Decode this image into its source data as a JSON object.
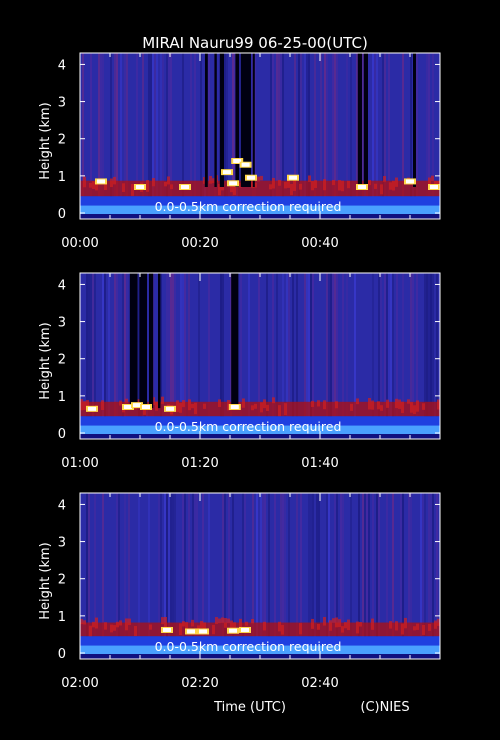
{
  "title": "MIRAI Nauru99 06-25-00(UTC)",
  "x_axis_label": "Time (UTC)",
  "credit": "(C)NIES",
  "note": "0.0-0.5km correction required",
  "y_axis_label": "Height (km)",
  "y_tick_labels": [
    "0",
    "1",
    "2",
    "3",
    "4"
  ],
  "colors": {
    "background": "#000000",
    "clear_air": "#2b2ba6",
    "boundary_layer": "#b01010",
    "cloud": "#ffffff",
    "blocked": "#000010"
  },
  "chart_data": [
    {
      "type": "heatmap",
      "panel": 1,
      "x_tick_labels": [
        "00:00",
        "00:20",
        "00:40"
      ],
      "xlim_minutes": [
        0,
        60
      ],
      "ylim_km": [
        0,
        4.2
      ],
      "y_ticks": [
        0,
        1,
        2,
        3,
        4
      ],
      "ylabel": "Height (km)",
      "annotation": "0.0-0.5km correction required",
      "cloud_base_km": 0.65,
      "dark_columns_minutes": [
        [
          20.8,
          21.3
        ],
        [
          22.4,
          22.8
        ],
        [
          23.3,
          24.0
        ],
        [
          25.9,
          26.5
        ],
        [
          26.8,
          28.5
        ],
        [
          28.8,
          29.1
        ],
        [
          46.3,
          47.0
        ],
        [
          47.3,
          48.0
        ],
        [
          55.5,
          56.0
        ]
      ],
      "cloud_patches": [
        {
          "t": 3.5,
          "h": 0.85
        },
        {
          "t": 10.0,
          "h": 0.7
        },
        {
          "t": 17.5,
          "h": 0.7
        },
        {
          "t": 24.5,
          "h": 1.1
        },
        {
          "t": 25.5,
          "h": 0.8
        },
        {
          "t": 26.2,
          "h": 1.4
        },
        {
          "t": 27.6,
          "h": 1.3
        },
        {
          "t": 28.5,
          "h": 0.95
        },
        {
          "t": 35.5,
          "h": 0.95
        },
        {
          "t": 47.0,
          "h": 0.7
        },
        {
          "t": 55.0,
          "h": 0.85
        },
        {
          "t": 59.0,
          "h": 0.7
        }
      ]
    },
    {
      "type": "heatmap",
      "panel": 2,
      "x_tick_labels": [
        "01:00",
        "01:20",
        "01:40"
      ],
      "xlim_minutes": [
        60,
        120
      ],
      "ylim_km": [
        0,
        4.2
      ],
      "y_ticks": [
        0,
        1,
        2,
        3,
        4
      ],
      "ylabel": "Height (km)",
      "annotation": "0.0-0.5km correction required",
      "cloud_base_km": 0.62,
      "dark_columns_minutes": [
        [
          68.3,
          69.6
        ],
        [
          69.9,
          71.2
        ],
        [
          71.5,
          72.2
        ],
        [
          73.0,
          73.4
        ],
        [
          85.2,
          86.4
        ]
      ],
      "cloud_patches": [
        {
          "t": 62.0,
          "h": 0.65
        },
        {
          "t": 68.0,
          "h": 0.7
        },
        {
          "t": 69.5,
          "h": 0.75
        },
        {
          "t": 71.0,
          "h": 0.7
        },
        {
          "t": 75.0,
          "h": 0.65
        },
        {
          "t": 85.8,
          "h": 0.7
        }
      ]
    },
    {
      "type": "heatmap",
      "panel": 3,
      "x_tick_labels": [
        "02:00",
        "02:20",
        "02:40"
      ],
      "xlim_minutes": [
        120,
        180
      ],
      "ylim_km": [
        0,
        4.2
      ],
      "y_ticks": [
        0,
        1,
        2,
        3,
        4
      ],
      "ylabel": "Height (km)",
      "annotation": "0.0-0.5km correction required",
      "cloud_base_km": 0.6,
      "dark_columns_minutes": [],
      "cloud_patches": [
        {
          "t": 134.5,
          "h": 0.62
        },
        {
          "t": 138.5,
          "h": 0.58
        },
        {
          "t": 140.5,
          "h": 0.58
        },
        {
          "t": 145.5,
          "h": 0.6
        },
        {
          "t": 147.5,
          "h": 0.62
        }
      ]
    }
  ]
}
